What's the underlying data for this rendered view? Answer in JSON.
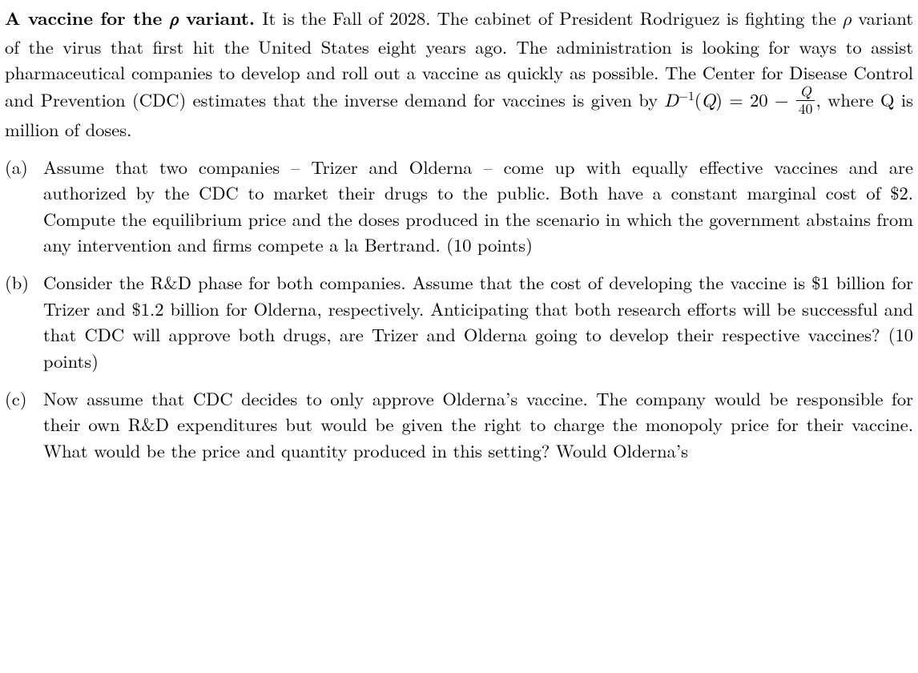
{
  "intro": {
    "title": "A vaccine for the ",
    "title_var": "ρ",
    "title_end": " variant.",
    "body_pre": "  It is the Fall of 2028. The cabinet of President Rodriguez is fighting the ",
    "body_var1": "ρ",
    "body_mid1": " variant of the virus that first hit the United States eight years ago. The administration is looking for ways to assist pharmaceutical companies to develop and roll out a vaccine as quickly as possible. The Center for Disease Control and Prevention (CDC) estimates that the inverse demand for vaccines is given by ",
    "eq_D": "D",
    "eq_exp": "−1",
    "eq_open": "(",
    "eq_Q1": "Q",
    "eq_close_eq": ") = 20 − ",
    "eq_frac_num": "Q",
    "eq_frac_den": "40",
    "body_mid2": ", where Q is million of doses."
  },
  "parts": {
    "a": {
      "marker": "(a)",
      "text": "Assume that two companies – Trizer and Olderna – come up with equally effective vaccines and are authorized by the CDC to market their drugs to the public. Both have a constant marginal cost of $2. Compute the equilibrium price and the doses produced in the scenario in which the government abstains from any intervention and firms compete a la Bertrand. (10 points)"
    },
    "b": {
      "marker": "(b)",
      "text": "Consider the R&D phase for both companies. Assume that the cost of developing the vaccine is $1 billion for Trizer and $1.2 billion for Olderna, respectively. Anticipating that both research efforts will be successful and that CDC will approve both drugs, are Trizer and Olderna going to develop their respective vaccines? (10 points)"
    },
    "c": {
      "marker": "(c)",
      "text": "Now assume that CDC decides to only approve Olderna’s vaccine. The company would be responsible for their own R&D expenditures but would be given the right to charge the monopoly price for their vaccine. What would be the price and quantity produced in this setting? Would Olderna’s"
    }
  }
}
